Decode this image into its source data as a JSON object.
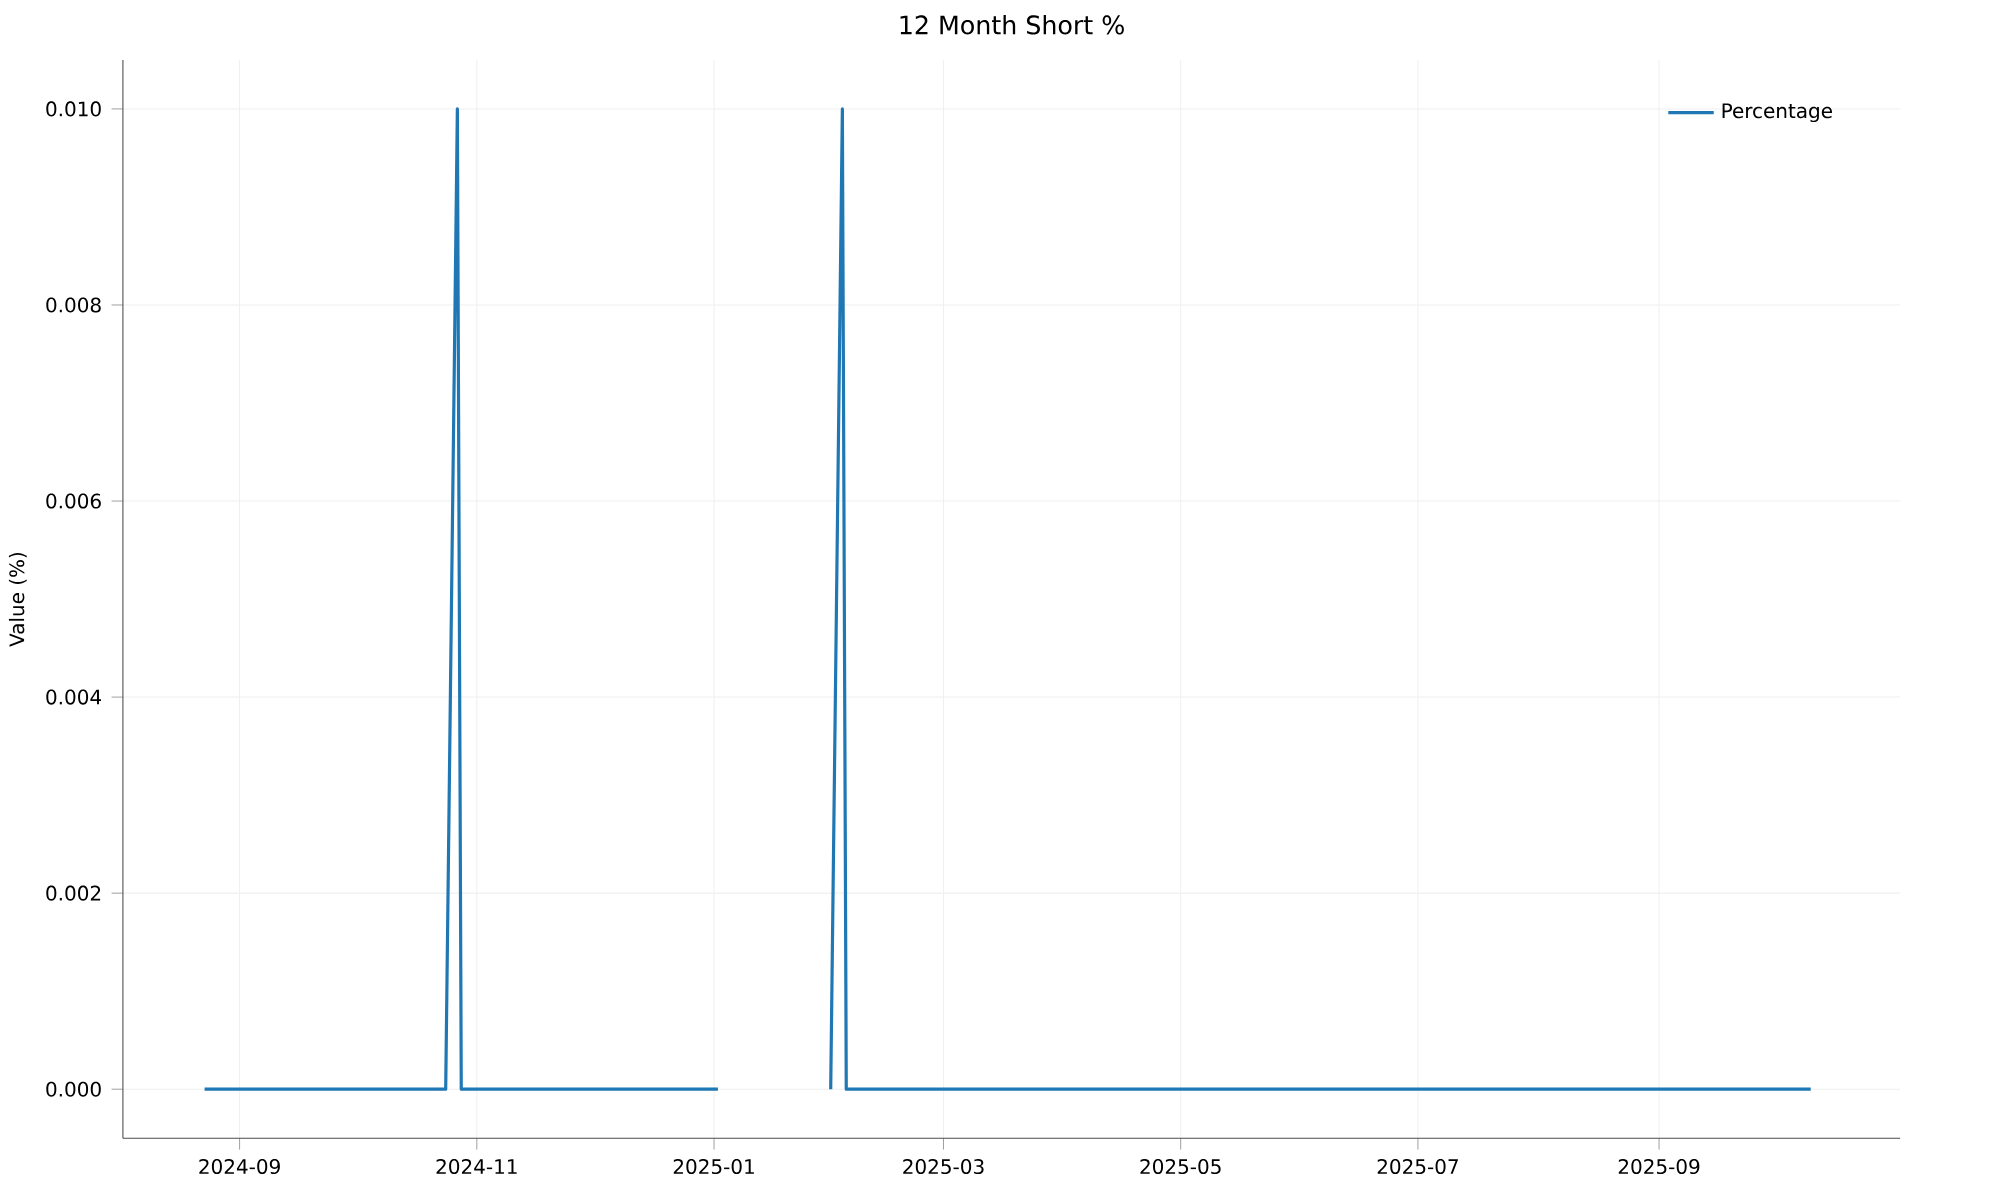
{
  "chart_data": {
    "type": "line",
    "title": "12 Month Short %",
    "ylabel": "Value (%)",
    "x": [
      "2024-08-23",
      "2024-10-24",
      "2024-10-27",
      "2024-10-28",
      "2025-01-02",
      "2025-01-16",
      "2025-01-31",
      "2025-02-03",
      "2025-02-04",
      "2025-10-10"
    ],
    "series": [
      {
        "name": "Percentage",
        "color": "#1f77b4",
        "values": [
          0,
          0,
          0.01,
          0,
          0,
          null,
          0,
          0.01,
          0,
          0
        ]
      }
    ],
    "xlim": [
      "2024-08-02",
      "2025-11-02"
    ],
    "xticks": [
      {
        "value": "2024-09-01",
        "label": "2024-09"
      },
      {
        "value": "2024-11-01",
        "label": "2024-11"
      },
      {
        "value": "2025-01-01",
        "label": "2025-01"
      },
      {
        "value": "2025-03-01",
        "label": "2025-03"
      },
      {
        "value": "2025-05-01",
        "label": "2025-05"
      },
      {
        "value": "2025-07-01",
        "label": "2025-07"
      },
      {
        "value": "2025-09-01",
        "label": "2025-09"
      }
    ],
    "ylim": [
      -0.0005,
      0.0105
    ],
    "yticks": [
      {
        "value": 0,
        "label": "0.000"
      },
      {
        "value": 0.002,
        "label": "0.002"
      },
      {
        "value": 0.004,
        "label": "0.004"
      },
      {
        "value": 0.006,
        "label": "0.006"
      },
      {
        "value": 0.008,
        "label": "0.008"
      },
      {
        "value": 0.01,
        "label": "0.010"
      }
    ],
    "grid": true,
    "legend": "top right",
    "marker": "none",
    "line_style": "solid"
  }
}
